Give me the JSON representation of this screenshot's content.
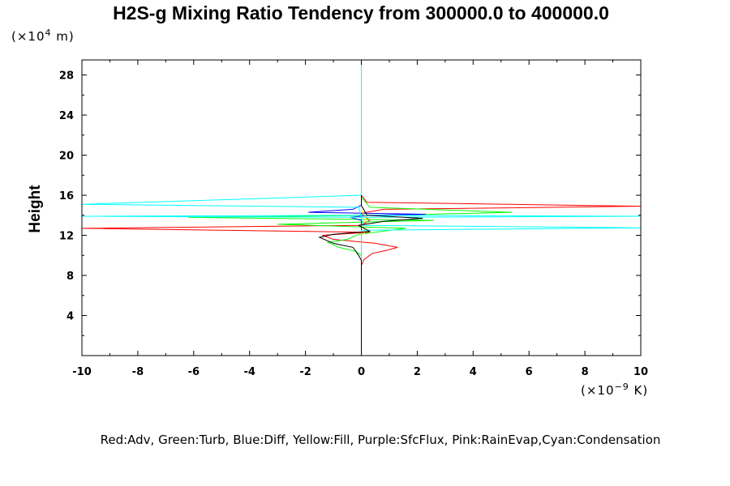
{
  "chart_data": {
    "type": "line",
    "title": "H2S-g Mixing Ratio Tendency from 300000.0 to 400000.0",
    "ylabel": "Height",
    "y_unit_prefix": "(×10",
    "y_unit_exp": "4",
    "y_unit_suffix": " m)",
    "x_unit_prefix": "(×10",
    "x_unit_exp": "−9",
    "x_unit_suffix": " K)",
    "xlim": [
      -10,
      10
    ],
    "ylim": [
      0,
      29.5
    ],
    "xticks": [
      -10,
      -8,
      -6,
      -4,
      -2,
      0,
      2,
      4,
      6,
      8,
      10
    ],
    "yticks": [
      4,
      8,
      12,
      16,
      20,
      24,
      28
    ],
    "legend_text": "Red:Adv, Green:Turb, Blue:Diff, Yellow:Fill, Purple:SfcFlux, Pink:RainEvap,Cyan:Condensation",
    "series": [
      {
        "color": "#ff0000",
        "points": [
          [
            0,
            0
          ],
          [
            0,
            9
          ],
          [
            0.1,
            9.6
          ],
          [
            0.4,
            10.2
          ],
          [
            0.9,
            10.5
          ],
          [
            1.3,
            10.8
          ],
          [
            0.5,
            11.2
          ],
          [
            -1,
            11.6
          ],
          [
            -1.4,
            12
          ],
          [
            0.3,
            12.3
          ],
          [
            -10,
            12.7
          ],
          [
            0,
            13
          ],
          [
            0.3,
            13.5
          ],
          [
            0,
            14.2
          ],
          [
            0.8,
            14.6
          ],
          [
            10,
            14.9
          ],
          [
            0.2,
            15.3
          ],
          [
            0,
            16
          ],
          [
            0,
            29.5
          ]
        ]
      },
      {
        "color": "#00ff00",
        "points": [
          [
            0,
            0
          ],
          [
            0,
            9
          ],
          [
            0,
            10
          ],
          [
            -0.2,
            10.4
          ],
          [
            -0.8,
            10.8
          ],
          [
            -1.2,
            11.3
          ],
          [
            -0.5,
            11.6
          ],
          [
            -0.1,
            12.1
          ],
          [
            1.6,
            12.7
          ],
          [
            -3,
            13.1
          ],
          [
            2.6,
            13.5
          ],
          [
            -6.2,
            13.8
          ],
          [
            0.9,
            14
          ],
          [
            5.4,
            14.3
          ],
          [
            0.3,
            14.8
          ],
          [
            0,
            15.8
          ],
          [
            0,
            29.5
          ]
        ]
      },
      {
        "color": "#0000ff",
        "points": [
          [
            0,
            0
          ],
          [
            0,
            9
          ],
          [
            0,
            13.5
          ],
          [
            -0.4,
            13.8
          ],
          [
            0.3,
            14
          ],
          [
            2.3,
            14.1
          ],
          [
            -1.9,
            14.3
          ],
          [
            -0.3,
            14.6
          ],
          [
            0,
            15
          ],
          [
            0,
            29.5
          ]
        ]
      },
      {
        "color": "#ffff00",
        "points": [
          [
            0,
            0
          ],
          [
            0,
            12
          ],
          [
            0.15,
            12.4
          ],
          [
            0,
            13
          ],
          [
            0.2,
            13.6
          ],
          [
            0,
            14.5
          ],
          [
            0,
            29.5
          ]
        ]
      },
      {
        "color": "#00ffff",
        "points": [
          [
            0,
            0
          ],
          [
            0,
            9
          ],
          [
            0,
            12.5
          ],
          [
            10,
            12.75
          ],
          [
            0.05,
            13
          ],
          [
            0,
            13.8
          ],
          [
            -10,
            13.9
          ],
          [
            0,
            14
          ],
          [
            10,
            13.9
          ],
          [
            0,
            13.8
          ],
          [
            -0.1,
            14.8
          ],
          [
            -10,
            15.1
          ],
          [
            0,
            16
          ],
          [
            0,
            29.5
          ]
        ]
      },
      {
        "color": "#000000",
        "points": [
          [
            0,
            0
          ],
          [
            0,
            9.5
          ],
          [
            -0.1,
            10
          ],
          [
            -0.3,
            10.8
          ],
          [
            -1,
            11.2
          ],
          [
            -1.5,
            11.8
          ],
          [
            -1,
            12.1
          ],
          [
            0.3,
            12.4
          ],
          [
            -0.1,
            13
          ],
          [
            0.8,
            13.4
          ],
          [
            2.2,
            13.7
          ],
          [
            0.2,
            14
          ],
          [
            0,
            15
          ],
          [
            0,
            16
          ]
        ]
      }
    ]
  }
}
